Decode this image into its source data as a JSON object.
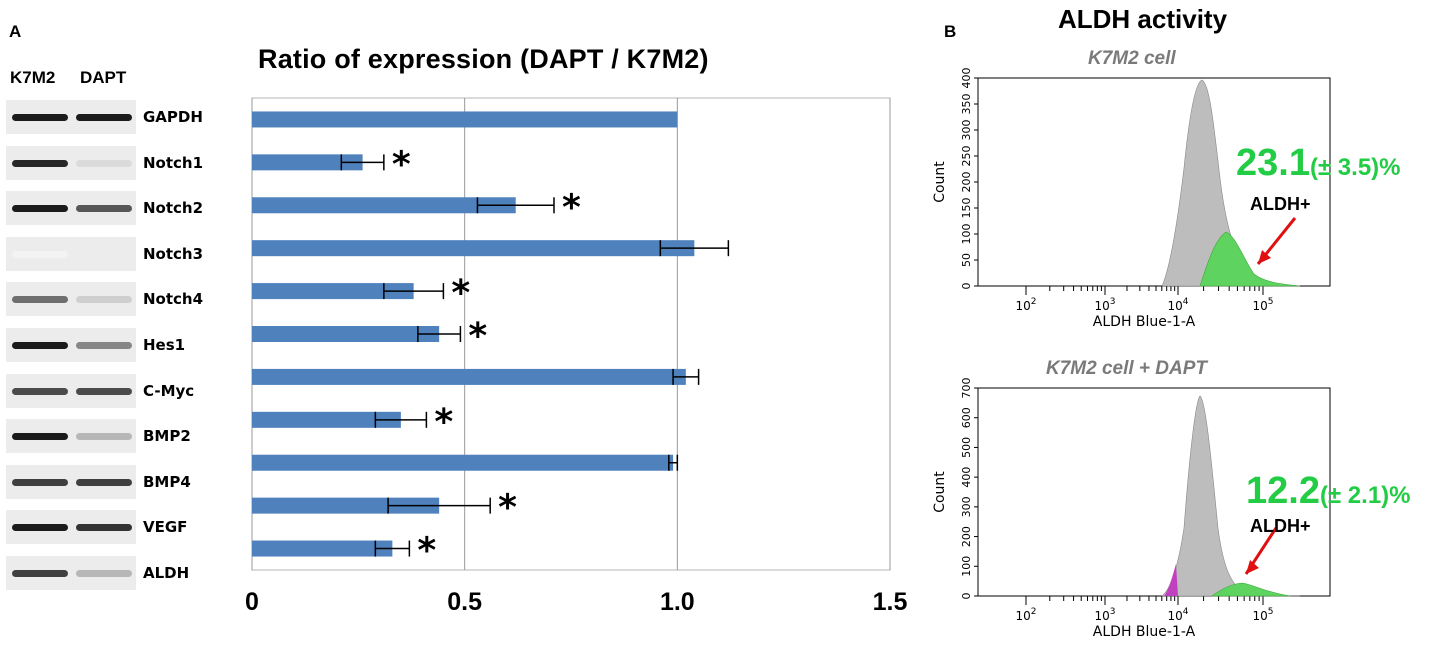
{
  "panelA": {
    "letter": "A",
    "col_headers": [
      "K7M2",
      "DAPT"
    ],
    "gel": [
      {
        "gene": "GAPDH",
        "k": 0.95,
        "d": 0.95
      },
      {
        "gene": "Notch1",
        "k": 0.9,
        "d": 0.15
      },
      {
        "gene": "Notch2",
        "k": 0.95,
        "d": 0.7
      },
      {
        "gene": "Notch3",
        "k": 0.05,
        "d": 0.08
      },
      {
        "gene": "Notch4",
        "k": 0.6,
        "d": 0.2
      },
      {
        "gene": "Hes1",
        "k": 0.95,
        "d": 0.5
      },
      {
        "gene": "C-Myc",
        "k": 0.75,
        "d": 0.75
      },
      {
        "gene": "BMP2",
        "k": 0.95,
        "d": 0.3
      },
      {
        "gene": "BMP4",
        "k": 0.8,
        "d": 0.8
      },
      {
        "gene": "VEGF",
        "k": 0.95,
        "d": 0.85
      },
      {
        "gene": "ALDH",
        "k": 0.8,
        "d": 0.3
      }
    ]
  },
  "chart_data": [
    {
      "type": "bar",
      "orientation": "horizontal",
      "title": "Ratio of expression (DAPT / K7M2)",
      "categories": [
        "GAPDH",
        "Notch1",
        "Notch2",
        "Notch3",
        "Notch4",
        "Hes1",
        "C-Myc",
        "BMP2",
        "BMP4",
        "VEGF",
        "ALDH"
      ],
      "values": [
        1.0,
        0.26,
        0.62,
        1.04,
        0.38,
        0.44,
        1.02,
        0.35,
        0.99,
        0.44,
        0.33
      ],
      "errors": [
        0,
        0.05,
        0.09,
        0.08,
        0.07,
        0.05,
        0.03,
        0.06,
        0.01,
        0.12,
        0.04
      ],
      "significant": [
        false,
        true,
        true,
        false,
        true,
        true,
        false,
        true,
        false,
        true,
        true
      ],
      "marker": "*",
      "xlim": [
        0,
        1.5
      ],
      "xticks": [
        0,
        0.5,
        1.0,
        1.5
      ],
      "xtick_labels": [
        "0",
        "0.5",
        "1.0",
        "1.5"
      ],
      "grid": true,
      "color": "#4f81bd"
    },
    {
      "type": "area",
      "title": "K7M2 cell",
      "xlabel": "ALDH Blue-1-A",
      "ylabel": "Count",
      "yticks": [
        0,
        50,
        100,
        150,
        200,
        250,
        300,
        350,
        400
      ],
      "xticks": [
        "10^2",
        "10^3",
        "10^4",
        "10^5"
      ],
      "gated_percent": "23.1",
      "gated_sd": "(± 3.5)%",
      "gate_label": "ALDH+"
    },
    {
      "type": "area",
      "title": "K7M2 cell + DAPT",
      "xlabel": "ALDH Blue-1-A",
      "ylabel": "Count",
      "yticks": [
        0,
        100,
        200,
        300,
        400,
        500,
        600,
        700
      ],
      "xticks": [
        "10^2",
        "10^3",
        "10^4",
        "10^5"
      ],
      "gated_percent": "12.2",
      "gated_sd": "(± 2.1)%",
      "gate_label": "ALDH+"
    }
  ],
  "panelB": {
    "letter": "B",
    "title": "ALDH activity"
  },
  "colors": {
    "bar": "#4f81bd",
    "grid": "#9a9a9a",
    "hist_gray": "#bdbdbd",
    "hist_green": "#5fd35f",
    "hist_purple": "#c040c0",
    "arrow": "#e01010",
    "pct": "#22cc44"
  }
}
